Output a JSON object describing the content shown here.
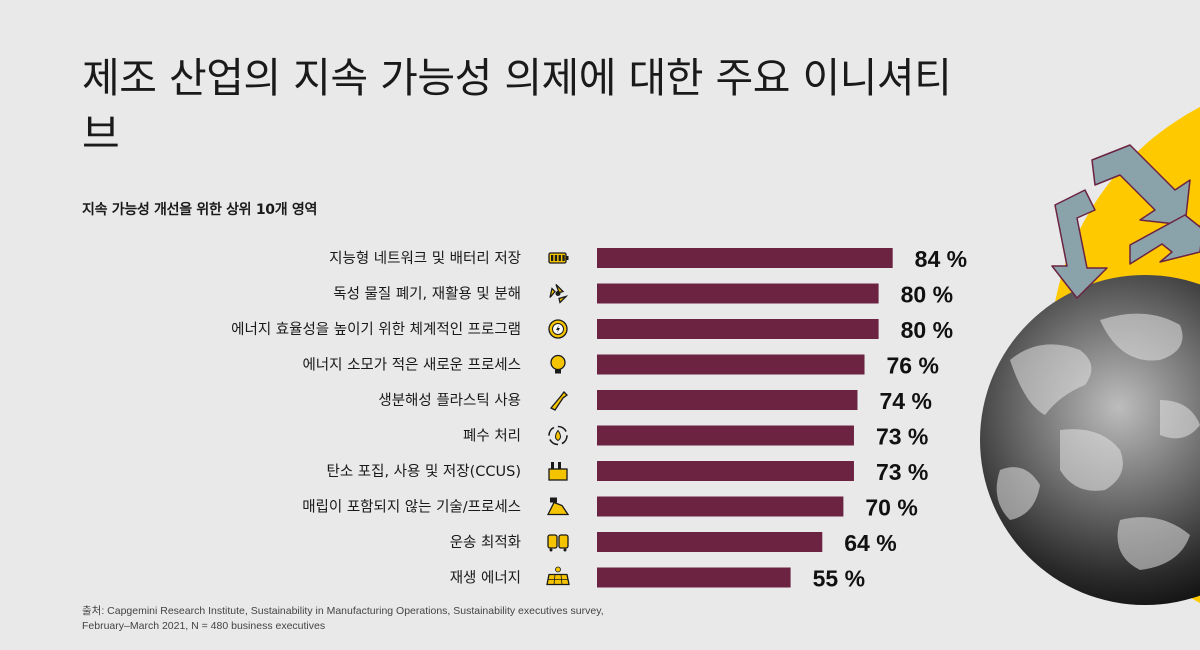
{
  "title": "제조 산업의 지속 가능성 의제에 대한 주요 이니셔티브",
  "subtitle": "지속 가능성 개선을 위한 상위 10개 영역",
  "source_line1": "출처: Capgemini Research Institute, Sustainability in Manufacturing Operations, Sustainability executives survey,",
  "source_line2": "February–March 2021, N = 480 business executives",
  "colors": {
    "bar": "#6b2341",
    "icon_fill": "#f5c400",
    "accent_yellow": "#ffc900",
    "background": "#e9e9ea"
  },
  "chart_data": {
    "type": "bar",
    "orientation": "horizontal",
    "categories": [
      "지능형 네트워크 및 배터리 저장",
      "독성 물질 폐기, 재활용 및 분해",
      "에너지 효율성을 높이기 위한 체계적인 프로그램",
      "에너지 소모가 적은 새로운 프로세스",
      "생분해성 플라스틱 사용",
      "폐수 처리",
      "탄소 포집, 사용 및 저장(CCUS)",
      "매립이 포함되지 않는 기술/프로세스",
      "운송 최적화",
      "재생 에너지"
    ],
    "values": [
      84,
      80,
      80,
      76,
      74,
      73,
      73,
      70,
      64,
      55
    ],
    "value_labels": [
      "84 %",
      "80 %",
      "80 %",
      "76 %",
      "74 %",
      "73 %",
      "73 %",
      "70 %",
      "64 %",
      "55 %"
    ],
    "icons": [
      "battery-icon",
      "recycle-icon",
      "gear-bolt-icon",
      "lightbulb-icon",
      "bottle-icon",
      "water-cycle-icon",
      "factory-icon",
      "landfill-icon",
      "bus-train-icon",
      "solar-panel-icon"
    ],
    "xlim": [
      0,
      100
    ],
    "grid": false,
    "legend": "none"
  }
}
